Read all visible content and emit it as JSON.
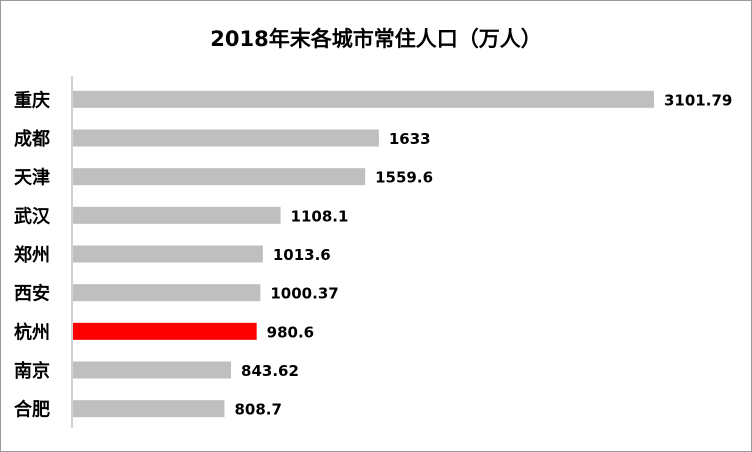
{
  "chart_data": {
    "type": "bar",
    "orientation": "horizontal",
    "title": "2018年末各城市常住人口（万人）",
    "categories": [
      "重庆",
      "成都",
      "天津",
      "武汉",
      "郑州",
      "西安",
      "杭州",
      "南京",
      "合肥"
    ],
    "values": [
      3101.79,
      1633,
      1559.6,
      1108.1,
      1013.6,
      1000.37,
      980.6,
      843.62,
      808.7
    ],
    "value_labels": [
      "3101.79",
      "1633",
      "1559.6",
      "1108.1",
      "1013.6",
      "1000.37",
      "980.6",
      "843.62",
      "808.7"
    ],
    "highlight": "杭州",
    "colors": {
      "bar": "#bfbfbf",
      "highlight": "#ff0000",
      "axis": "#a6a6a6"
    },
    "xlim": [
      0,
      3101.79
    ],
    "grid": false,
    "legend": "none"
  }
}
